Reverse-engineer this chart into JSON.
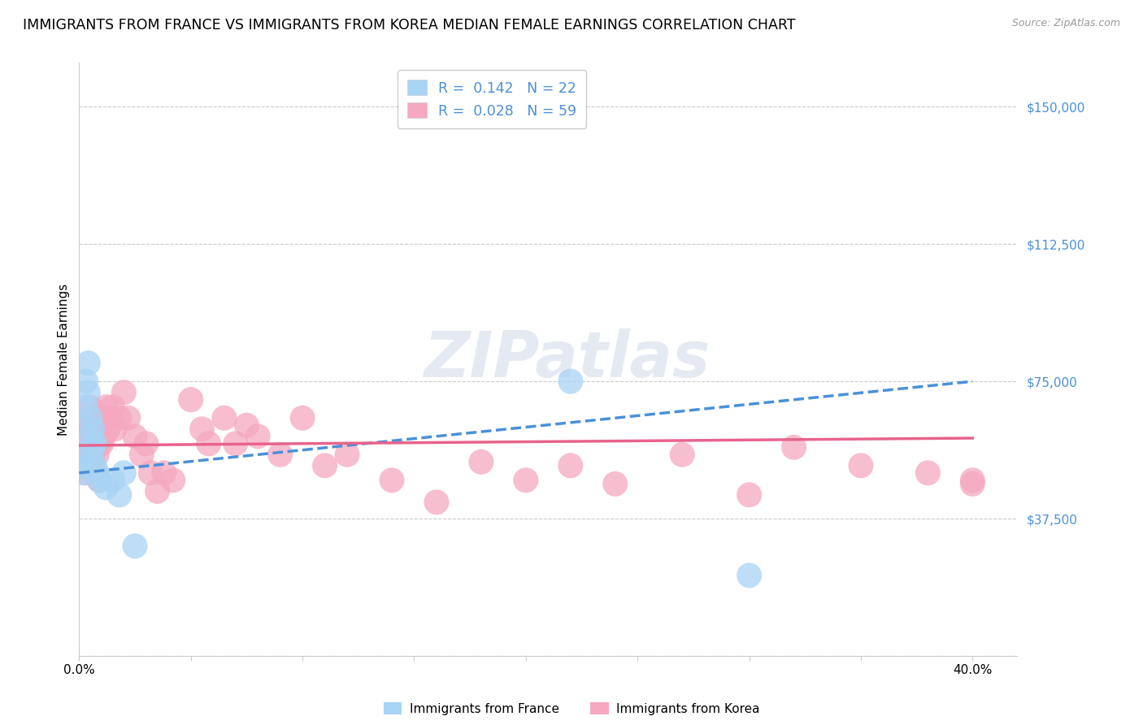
{
  "title": "IMMIGRANTS FROM FRANCE VS IMMIGRANTS FROM KOREA MEDIAN FEMALE EARNINGS CORRELATION CHART",
  "source": "Source: ZipAtlas.com",
  "ylabel": "Median Female Earnings",
  "yticks": [
    0,
    37500,
    75000,
    112500,
    150000
  ],
  "ytick_labels": [
    "",
    "$37,500",
    "$75,000",
    "$112,500",
    "$150,000"
  ],
  "xtick_positions": [
    0.0,
    0.05,
    0.1,
    0.15,
    0.2,
    0.25,
    0.3,
    0.35,
    0.4
  ],
  "xtick_labels": [
    "0.0%",
    "",
    "",
    "",
    "",
    "",
    "",
    "",
    "40.0%"
  ],
  "xlim": [
    0.0,
    0.42
  ],
  "ylim": [
    0,
    162000
  ],
  "watermark": "ZIPatlas",
  "legend_line1": "R =  0.142   N = 22",
  "legend_line2": "R =  0.028   N = 59",
  "france_color": "#a8d4f5",
  "korea_color": "#f5a8c0",
  "france_line_color": "#4a90d9",
  "korea_line_color": "#e8638c",
  "france_scatter_x": [
    0.001,
    0.002,
    0.003,
    0.003,
    0.004,
    0.004,
    0.005,
    0.005,
    0.005,
    0.006,
    0.006,
    0.007,
    0.007,
    0.008,
    0.009,
    0.012,
    0.015,
    0.018,
    0.02,
    0.025,
    0.22,
    0.3
  ],
  "france_scatter_y": [
    52000,
    50000,
    68000,
    75000,
    80000,
    72000,
    65000,
    60000,
    55000,
    62000,
    57000,
    58000,
    52000,
    50000,
    48000,
    46000,
    48000,
    44000,
    50000,
    30000,
    75000,
    22000
  ],
  "korea_scatter_x": [
    0.001,
    0.002,
    0.002,
    0.003,
    0.003,
    0.004,
    0.004,
    0.005,
    0.005,
    0.006,
    0.006,
    0.007,
    0.007,
    0.008,
    0.008,
    0.009,
    0.009,
    0.01,
    0.01,
    0.011,
    0.012,
    0.013,
    0.014,
    0.015,
    0.016,
    0.018,
    0.02,
    0.022,
    0.025,
    0.028,
    0.03,
    0.032,
    0.035,
    0.038,
    0.042,
    0.05,
    0.055,
    0.058,
    0.065,
    0.07,
    0.075,
    0.08,
    0.09,
    0.1,
    0.11,
    0.12,
    0.14,
    0.16,
    0.18,
    0.2,
    0.22,
    0.24,
    0.27,
    0.3,
    0.32,
    0.35,
    0.38,
    0.4,
    0.4
  ],
  "korea_scatter_y": [
    52000,
    55000,
    62000,
    50000,
    58000,
    65000,
    60000,
    52000,
    68000,
    55000,
    62000,
    50000,
    57000,
    65000,
    55000,
    58000,
    48000,
    62000,
    58000,
    60000,
    68000,
    62000,
    65000,
    68000,
    62000,
    65000,
    72000,
    65000,
    60000,
    55000,
    58000,
    50000,
    45000,
    50000,
    48000,
    70000,
    62000,
    58000,
    65000,
    58000,
    63000,
    60000,
    55000,
    65000,
    52000,
    55000,
    48000,
    42000,
    53000,
    48000,
    52000,
    47000,
    55000,
    44000,
    57000,
    52000,
    50000,
    48000,
    47000
  ],
  "france_size": 500,
  "korea_size": 500,
  "title_fontsize": 12.5,
  "axis_label_fontsize": 11,
  "tick_fontsize": 11,
  "grid_color": "#cccccc",
  "background_color": "#ffffff",
  "france_line_intercept": 50000,
  "france_line_slope": 62500,
  "korea_line_intercept": 57500,
  "korea_line_slope": 5000
}
